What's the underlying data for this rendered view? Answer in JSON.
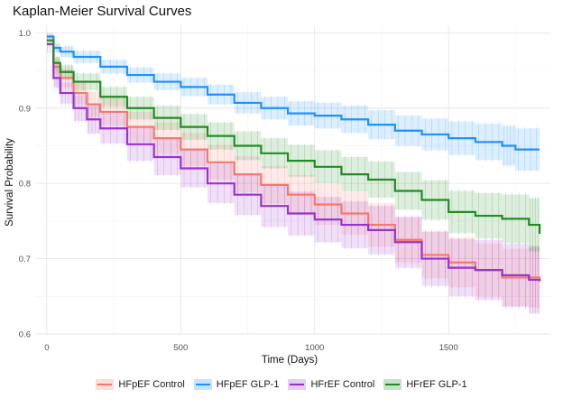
{
  "chart_data": {
    "type": "line",
    "title": "Kaplan-Meier Survival Curves",
    "xlabel": "Time (Days)",
    "ylabel": "Survival Probability",
    "xlim": [
      -40,
      1880
    ],
    "ylim": [
      0.6,
      1.01
    ],
    "x_ticks": [
      0,
      500,
      1000,
      1500
    ],
    "y_ticks": [
      0.6,
      0.7,
      0.8,
      0.9,
      1.0
    ],
    "y_tick_labels": [
      "0.6",
      "0.7",
      "0.8",
      "0.9",
      "1.0"
    ],
    "x_tick_labels": [
      "0",
      "500",
      "1000",
      "1500"
    ],
    "legend_position": "bottom",
    "series": [
      {
        "name": "HFpEF Control",
        "color": "#F8766D",
        "x": [
          0,
          25,
          50,
          100,
          150,
          200,
          300,
          400,
          500,
          600,
          700,
          800,
          900,
          1000,
          1100,
          1200,
          1300,
          1400,
          1500,
          1600,
          1700,
          1800,
          1840
        ],
        "y": [
          0.99,
          0.955,
          0.94,
          0.92,
          0.905,
          0.895,
          0.875,
          0.86,
          0.845,
          0.828,
          0.812,
          0.798,
          0.785,
          0.772,
          0.76,
          0.745,
          0.725,
          0.705,
          0.695,
          0.685,
          0.675,
          0.675,
          0.673
        ],
        "ci_width": [
          0,
          0.01,
          0.012,
          0.015,
          0.017,
          0.018,
          0.02,
          0.021,
          0.022,
          0.023,
          0.024,
          0.025,
          0.026,
          0.027,
          0.028,
          0.029,
          0.03,
          0.031,
          0.033,
          0.035,
          0.038,
          0.04,
          0.04
        ]
      },
      {
        "name": "HFpEF GLP-1",
        "color": "#1E90FF",
        "x": [
          0,
          25,
          50,
          100,
          200,
          300,
          400,
          500,
          600,
          700,
          800,
          900,
          1000,
          1100,
          1200,
          1300,
          1400,
          1500,
          1600,
          1700,
          1750,
          1840
        ],
        "y": [
          0.995,
          0.98,
          0.975,
          0.968,
          0.955,
          0.944,
          0.935,
          0.928,
          0.918,
          0.907,
          0.9,
          0.893,
          0.89,
          0.885,
          0.878,
          0.87,
          0.865,
          0.86,
          0.855,
          0.85,
          0.845,
          0.845
        ],
        "ci_width": [
          0,
          0.006,
          0.007,
          0.008,
          0.009,
          0.01,
          0.011,
          0.012,
          0.013,
          0.014,
          0.015,
          0.016,
          0.017,
          0.018,
          0.019,
          0.02,
          0.021,
          0.022,
          0.024,
          0.026,
          0.028,
          0.03
        ]
      },
      {
        "name": "HFrEF Control",
        "color": "#9932CC",
        "x": [
          0,
          25,
          50,
          100,
          150,
          200,
          300,
          400,
          500,
          600,
          700,
          800,
          900,
          1000,
          1100,
          1200,
          1300,
          1400,
          1500,
          1600,
          1700,
          1800,
          1840
        ],
        "y": [
          0.985,
          0.94,
          0.92,
          0.9,
          0.885,
          0.873,
          0.852,
          0.835,
          0.82,
          0.8,
          0.785,
          0.77,
          0.76,
          0.752,
          0.745,
          0.738,
          0.722,
          0.7,
          0.688,
          0.685,
          0.678,
          0.672,
          0.67
        ],
        "ci_width": [
          0,
          0.012,
          0.014,
          0.017,
          0.019,
          0.02,
          0.022,
          0.024,
          0.025,
          0.026,
          0.027,
          0.028,
          0.029,
          0.03,
          0.031,
          0.032,
          0.034,
          0.036,
          0.038,
          0.04,
          0.042,
          0.045,
          0.045
        ]
      },
      {
        "name": "HFrEF GLP-1",
        "color": "#228B22",
        "x": [
          0,
          25,
          50,
          100,
          200,
          300,
          400,
          500,
          600,
          700,
          800,
          900,
          1000,
          1100,
          1200,
          1300,
          1400,
          1500,
          1600,
          1700,
          1800,
          1840
        ],
        "y": [
          0.99,
          0.96,
          0.948,
          0.935,
          0.915,
          0.9,
          0.887,
          0.875,
          0.863,
          0.85,
          0.84,
          0.83,
          0.822,
          0.812,
          0.805,
          0.79,
          0.778,
          0.762,
          0.757,
          0.753,
          0.745,
          0.733
        ],
        "ci_width": [
          0,
          0.008,
          0.009,
          0.011,
          0.013,
          0.015,
          0.016,
          0.017,
          0.018,
          0.019,
          0.02,
          0.021,
          0.022,
          0.023,
          0.024,
          0.025,
          0.026,
          0.028,
          0.03,
          0.032,
          0.035,
          0.038
        ]
      }
    ]
  }
}
